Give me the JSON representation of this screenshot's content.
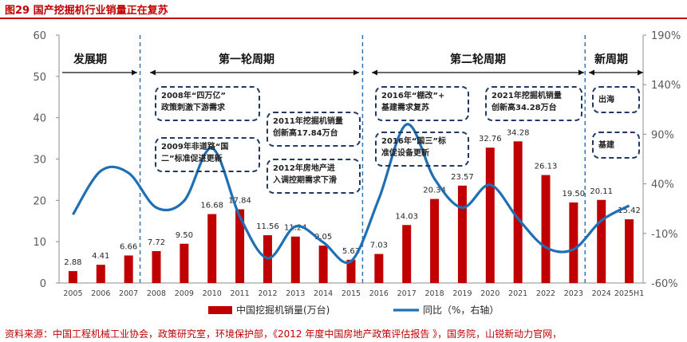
{
  "figure_title": "图29  国产挖掘机行业销量正在复苏",
  "source_note": "资料来源：中国工程机械工业协会，政策研究室，环境保护部，《2012 年度中国房地产政策评估报告 》，国务院，山锐新动力官网，",
  "periods": [
    "发展期",
    "第一轮周期",
    "第二轮周期",
    "新周期"
  ],
  "annotations": [
    [
      "2008年“四万亿”",
      "政策刺激下游需求"
    ],
    [
      "2009年非道路“国",
      "二”标准促进更新"
    ],
    [
      "2011年挖掘机销量",
      "创新高17.84万台"
    ],
    [
      "2012年房地产进",
      "入调控期需求下滑"
    ],
    [
      "2016年“棚改”+",
      "基建需求复苏"
    ],
    [
      "2016年“国三”标",
      "准促设备更新"
    ],
    [
      "2021年挖掘机销量",
      "创新高34.28万台"
    ],
    [
      "出海"
    ],
    [
      "基建"
    ]
  ],
  "colors": {
    "bar": "#c00000",
    "line": "#1f6fb5",
    "divider": "#2e75b6",
    "box_border": "#1f3864",
    "title": "#c00000"
  },
  "chart_data": {
    "type": "bar+line",
    "categories": [
      "2005",
      "2006",
      "2007",
      "2008",
      "2009",
      "2010",
      "2011",
      "2012",
      "2013",
      "2014",
      "2015",
      "2016",
      "2017",
      "2018",
      "2019",
      "2020",
      "2021",
      "2022",
      "2023",
      "2024",
      "2025H1"
    ],
    "series": [
      {
        "name": "中国挖掘机销量(万台)",
        "type": "bar",
        "axis": "left",
        "values": [
          2.88,
          4.41,
          6.66,
          7.72,
          9.5,
          16.68,
          17.84,
          11.56,
          11.24,
          9.05,
          5.63,
          7.03,
          14.03,
          20.34,
          23.57,
          32.76,
          34.28,
          26.13,
          19.5,
          20.11,
          15.42
        ],
        "labels": [
          "2.88",
          "4.41",
          "6.66",
          "7.72",
          "9.50",
          "16.68",
          "17.84",
          "11.56",
          "11.24",
          "9.05",
          "5.63",
          "7.03",
          "14.03",
          "20.34",
          "23.57",
          "32.76",
          "34.28",
          "26.13",
          "19.50",
          "20.11",
          "15.42"
        ]
      },
      {
        "name": "同比（%，右轴）",
        "type": "line",
        "axis": "right",
        "values": [
          9,
          53,
          51,
          16,
          23,
          76,
          7,
          -35,
          -3,
          -19,
          -38,
          25,
          100,
          45,
          16,
          39,
          5,
          -24,
          -26,
          3,
          18
        ]
      }
    ],
    "y_left": {
      "range": [
        0,
        60
      ],
      "ticks": [
        "0",
        "10",
        "20",
        "30",
        "40",
        "50",
        "60"
      ]
    },
    "y_right": {
      "range": [
        -60,
        190
      ],
      "ticks": [
        "-60%",
        "-10%",
        "40%",
        "90%",
        "140%",
        "190%"
      ]
    },
    "legend_position": "bottom",
    "grid": false
  }
}
